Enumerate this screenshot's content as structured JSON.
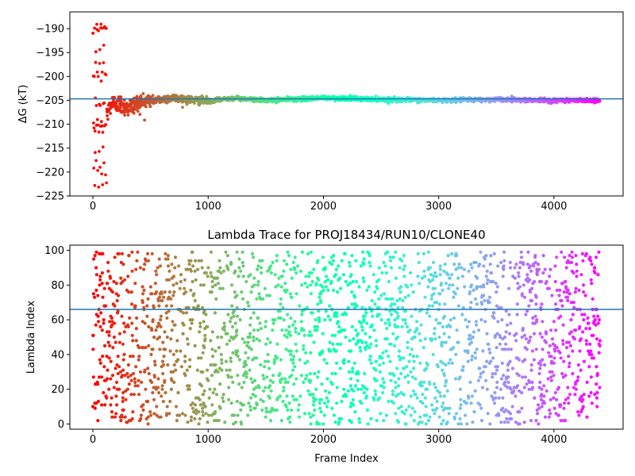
{
  "chart_data": [
    {
      "type": "scatter",
      "title": "",
      "xlabel": "",
      "ylabel": "ΔG (kT)",
      "xlim": [
        -200,
        4600
      ],
      "ylim": [
        -225,
        -186.5
      ],
      "xticks": [
        0,
        1000,
        2000,
        3000,
        4000
      ],
      "yticks": [
        -225,
        -220,
        -215,
        -210,
        -205,
        -200,
        -195,
        -190
      ],
      "grid": false,
      "hline": -204.7,
      "n_frames": 4400,
      "colormap": "rainbow",
      "series": [
        {
          "x": [
            0,
            20,
            40,
            60,
            80,
            100,
            120,
            150,
            200,
            300,
            400,
            500,
            700,
            900,
            1000,
            1200,
            1500,
            2000,
            2500,
            3000,
            3500,
            4000,
            4400
          ],
          "values": [
            -200,
            -210,
            -195,
            -220,
            -200,
            -212,
            -208,
            -206,
            -205.5,
            -206.5,
            -205.5,
            -205,
            -204.5,
            -205,
            -205.2,
            -204.5,
            -205,
            -204.5,
            -204.8,
            -205,
            -204.8,
            -205,
            -205
          ]
        }
      ]
    },
    {
      "type": "scatter",
      "title": "Lambda Trace for PROJ18434/RUN10/CLONE40",
      "xlabel": "Frame Index",
      "ylabel": "Lambda Index",
      "xlim": [
        -200,
        4600
      ],
      "ylim": [
        -3,
        103
      ],
      "xticks": [
        0,
        1000,
        2000,
        3000,
        4000
      ],
      "yticks": [
        0,
        20,
        40,
        60,
        80,
        100
      ],
      "grid": false,
      "hline": 66,
      "n_frames": 4400,
      "value_range": [
        0,
        99
      ],
      "colormap": "rainbow"
    }
  ]
}
